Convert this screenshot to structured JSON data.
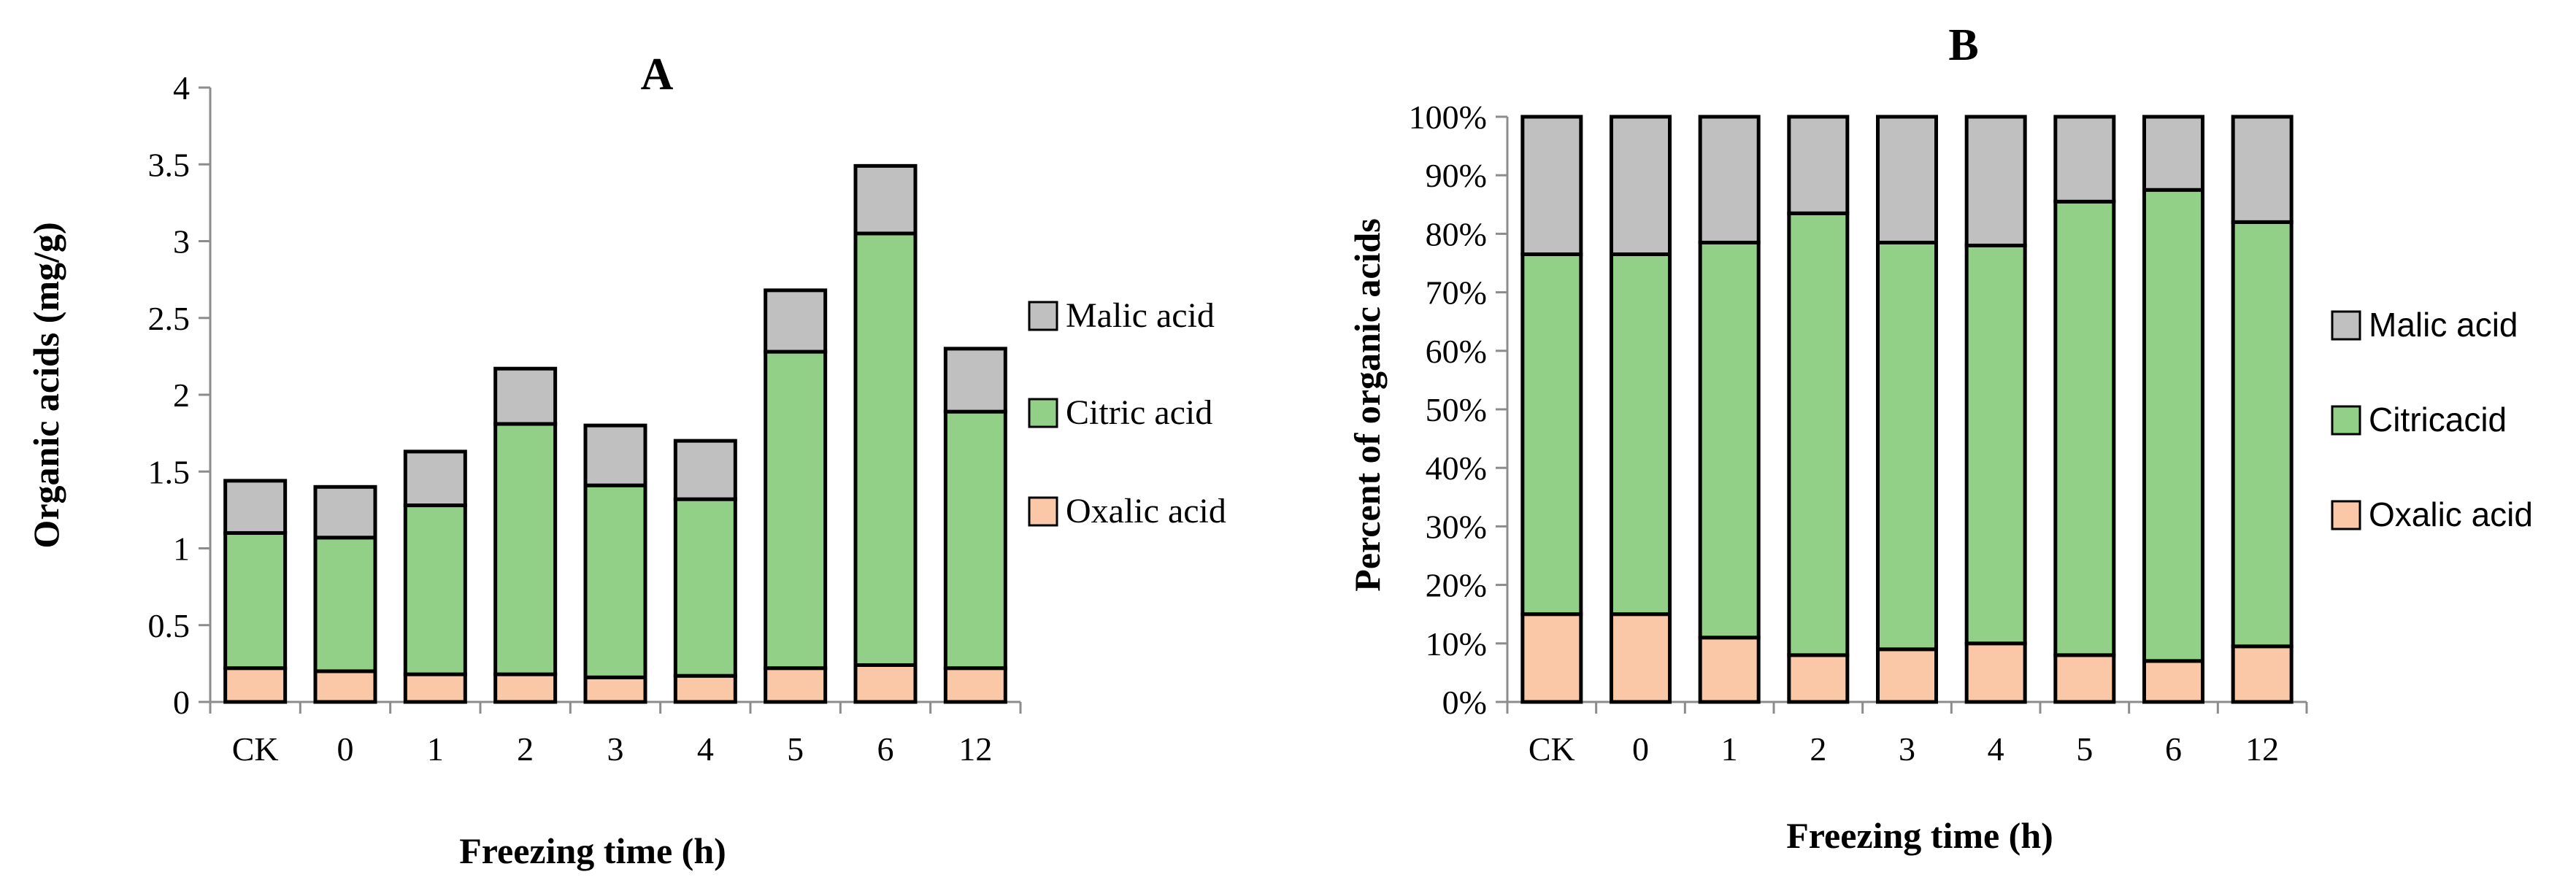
{
  "colors": {
    "malic": "#c0c0c0",
    "citric": "#92d087",
    "oxalic": "#fac8a6",
    "outline": "#000000",
    "axis": "#8c8c8c"
  },
  "chart_data": [
    {
      "panel": "A",
      "type": "bar",
      "stacked": true,
      "title": "A",
      "xlabel": "Freezing time (h)",
      "ylabel": "Organic acids (mg/g)",
      "categories": [
        "CK",
        "0",
        "1",
        "2",
        "3",
        "4",
        "5",
        "6",
        "12"
      ],
      "ylim": [
        0,
        4
      ],
      "yticks": [
        0,
        0.5,
        1,
        1.5,
        2,
        2.5,
        3,
        3.5,
        4
      ],
      "ytick_labels": [
        "0",
        "0.5",
        "1",
        "1.5",
        "2",
        "2.5",
        "3",
        "3.5",
        "4"
      ],
      "grid": false,
      "legend_position": "right",
      "legend": [
        "Malic acid",
        "Citric acid",
        "Oxalic acid"
      ],
      "series": [
        {
          "name": "Oxalic acid",
          "color_key": "oxalic",
          "values": [
            0.22,
            0.2,
            0.18,
            0.18,
            0.16,
            0.17,
            0.22,
            0.24,
            0.22
          ]
        },
        {
          "name": "Citric acid",
          "color_key": "citric",
          "values": [
            0.88,
            0.87,
            1.1,
            1.63,
            1.25,
            1.15,
            2.06,
            2.81,
            1.67
          ]
        },
        {
          "name": "Malic acid",
          "color_key": "malic",
          "values": [
            0.34,
            0.33,
            0.35,
            0.36,
            0.39,
            0.38,
            0.4,
            0.44,
            0.41
          ]
        }
      ]
    },
    {
      "panel": "B",
      "type": "bar",
      "stacked": true,
      "percent": true,
      "title": "B",
      "xlabel": "Freezing time (h)",
      "ylabel": "Percent of organic acids",
      "categories": [
        "CK",
        "0",
        "1",
        "2",
        "3",
        "4",
        "5",
        "6",
        "12"
      ],
      "ylim": [
        0,
        100
      ],
      "yticks": [
        0,
        10,
        20,
        30,
        40,
        50,
        60,
        70,
        80,
        90,
        100
      ],
      "ytick_labels": [
        "0%",
        "10%",
        "20%",
        "30%",
        "40%",
        "50%",
        "60%",
        "70%",
        "80%",
        "90%",
        "100%"
      ],
      "grid": false,
      "legend_position": "right",
      "legend": [
        "Malic acid",
        "Citricacid",
        "Oxalic acid"
      ],
      "series": [
        {
          "name": "Oxalic acid",
          "color_key": "oxalic",
          "values": [
            15,
            15,
            11,
            8,
            9,
            10,
            8,
            7,
            9.5
          ]
        },
        {
          "name": "Citricacid",
          "color_key": "citric",
          "values": [
            61.5,
            61.5,
            67.5,
            75.5,
            69.5,
            68,
            77.5,
            80.5,
            72.5
          ]
        },
        {
          "name": "Malic acid",
          "color_key": "malic",
          "values": [
            23.5,
            23.5,
            21.5,
            16.5,
            21.5,
            22,
            14.5,
            12.5,
            18
          ]
        }
      ]
    }
  ]
}
